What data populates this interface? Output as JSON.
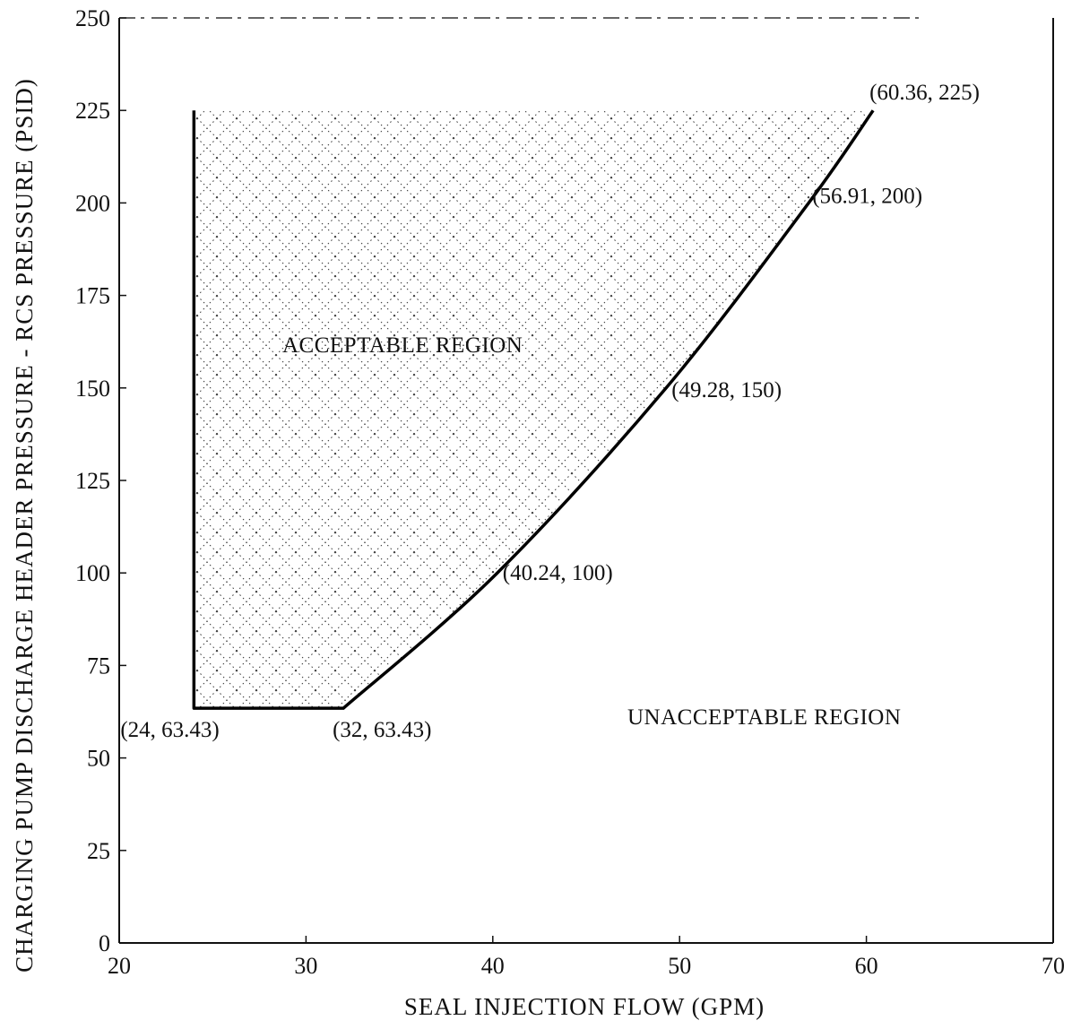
{
  "chart_data": {
    "type": "area",
    "title": "",
    "xlabel": "SEAL INJECTION FLOW (GPM)",
    "ylabel": "CHARGING PUMP DISCHARGE HEADER PRESSURE - RCS PRESSURE (PSID)",
    "xlim": [
      20,
      70
    ],
    "ylim": [
      0,
      250
    ],
    "x_ticks": [
      "20",
      "30",
      "40",
      "50",
      "60",
      "70"
    ],
    "y_ticks": [
      "0",
      "25",
      "50",
      "75",
      "100",
      "125",
      "150",
      "175",
      "200",
      "225",
      "250"
    ],
    "grid": false,
    "series": [
      {
        "name": "",
        "x": [
          24,
          24,
          32,
          40.24,
          49.28,
          56.91,
          60.36
        ],
        "y": [
          225,
          63.43,
          63.43,
          100,
          150,
          200,
          225
        ]
      }
    ],
    "annotations": [
      {
        "text": "(24, 63.43)",
        "x": 24,
        "y": 63.43
      },
      {
        "text": "(32, 63.43)",
        "x": 32,
        "y": 63.43
      },
      {
        "text": "(40.24, 100)",
        "x": 40.24,
        "y": 100
      },
      {
        "text": "(49.28, 150)",
        "x": 49.28,
        "y": 150
      },
      {
        "text": "(56.91, 200)",
        "x": 56.91,
        "y": 200
      },
      {
        "text": "(60.36, 225)",
        "x": 60.36,
        "y": 225
      }
    ],
    "regions": [
      {
        "label": "ACCEPTABLE REGION",
        "shaded": true
      },
      {
        "label": "UNACCEPTABLE REGION",
        "shaded": false
      }
    ]
  }
}
